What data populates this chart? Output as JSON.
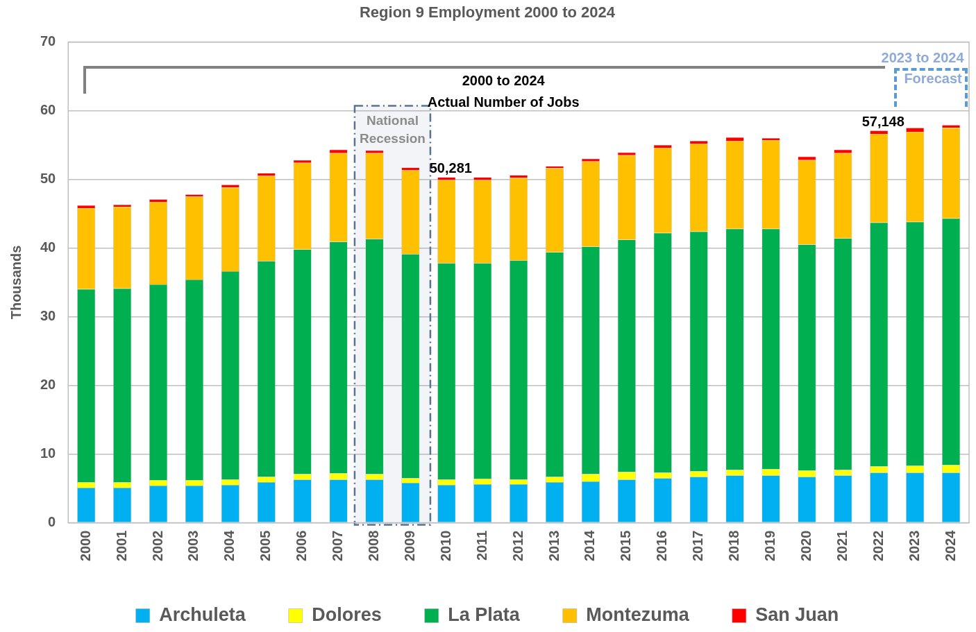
{
  "chart_data": {
    "type": "bar",
    "title": "Region 9 Employment 2000 to 2024",
    "ylabel": "Thousands",
    "categories": [
      "2000",
      "2001",
      "2002",
      "2003",
      "2004",
      "2005",
      "2006",
      "2007",
      "2008",
      "2009",
      "2010",
      "2011",
      "2012",
      "2013",
      "2014",
      "2015",
      "2016",
      "2017",
      "2018",
      "2019",
      "2020",
      "2021",
      "2022",
      "2023",
      "2024"
    ],
    "stacked": true,
    "series": [
      {
        "name": "Archuleta",
        "color": "#00b0f0",
        "values": [
          5.1,
          5.1,
          5.4,
          5.4,
          5.5,
          5.9,
          6.3,
          6.3,
          6.3,
          5.8,
          5.5,
          5.6,
          5.6,
          5.9,
          6.0,
          6.3,
          6.5,
          6.7,
          6.9,
          6.9,
          6.7,
          6.9,
          7.3,
          7.3,
          7.3
        ]
      },
      {
        "name": "Dolores",
        "color": "#ffff00",
        "values": [
          0.8,
          0.8,
          0.8,
          0.8,
          0.8,
          0.8,
          0.8,
          0.9,
          0.8,
          0.7,
          0.8,
          0.8,
          0.7,
          0.8,
          1.1,
          1.1,
          0.8,
          0.8,
          0.8,
          0.9,
          0.9,
          0.8,
          0.9,
          1.0,
          1.1
        ]
      },
      {
        "name": "La Plata",
        "color": "#00b050",
        "values": [
          28.1,
          28.2,
          28.5,
          29.2,
          30.3,
          31.4,
          32.7,
          33.7,
          34.2,
          32.6,
          31.5,
          31.4,
          31.9,
          32.7,
          33.1,
          33.8,
          34.9,
          34.9,
          35.1,
          35.0,
          32.9,
          33.7,
          35.5,
          35.5,
          35.9
        ]
      },
      {
        "name": "Montezuma",
        "color": "#ffc000",
        "values": [
          11.8,
          11.9,
          12.0,
          12.1,
          12.2,
          12.4,
          12.6,
          12.9,
          12.5,
          12.2,
          12.1,
          12.1,
          12.0,
          12.2,
          12.4,
          12.3,
          12.4,
          12.8,
          12.8,
          12.9,
          12.3,
          12.4,
          12.9,
          13.1,
          13.2
        ]
      },
      {
        "name": "San Juan",
        "color": "#ff0000",
        "values": [
          0.4,
          0.3,
          0.4,
          0.3,
          0.4,
          0.4,
          0.4,
          0.5,
          0.4,
          0.4,
          0.4,
          0.4,
          0.4,
          0.3,
          0.4,
          0.4,
          0.4,
          0.4,
          0.5,
          0.3,
          0.5,
          0.5,
          0.5,
          0.6,
          0.4
        ]
      }
    ],
    "ylim": [
      0,
      70
    ],
    "yticks": [
      0,
      10,
      20,
      30,
      40,
      50,
      60,
      70
    ],
    "grid": "y",
    "legend": "bottom",
    "bands": [
      {
        "axis": "x",
        "from": "2008",
        "to": "2009",
        "label": "National Recession",
        "color": "#5a7394"
      }
    ],
    "annotations": [
      {
        "text": "50,281",
        "x": "2010",
        "y": 50.3
      },
      {
        "text": "57,148",
        "x": "2022",
        "y": 57.1
      },
      "2000 to 2024",
      "Actual  Number of Jobs",
      "2023 to 2024",
      "Forecast"
    ]
  }
}
